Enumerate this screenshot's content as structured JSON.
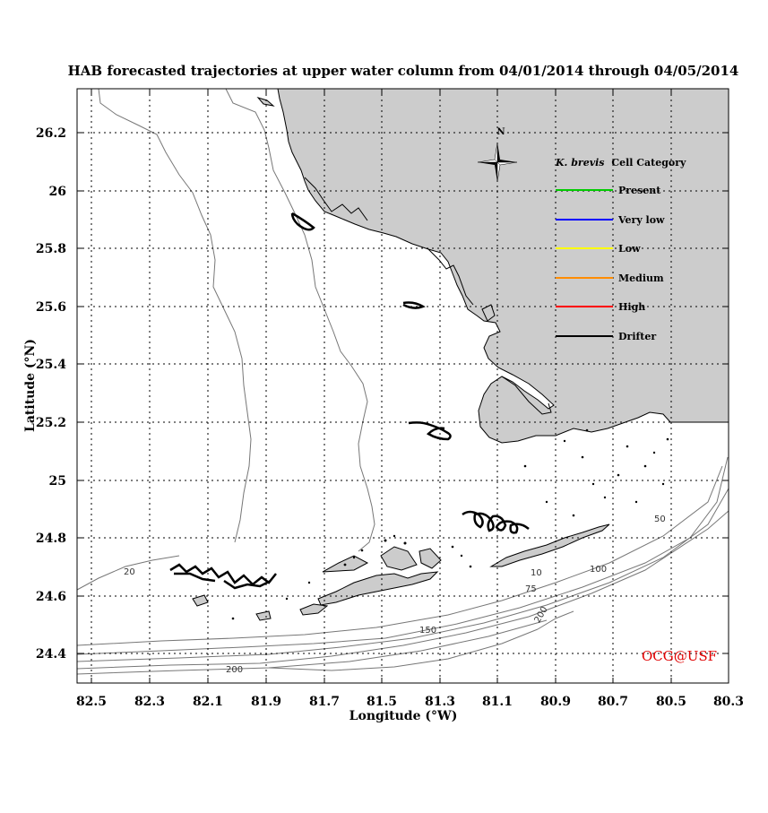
{
  "chart_data": {
    "type": "map",
    "title": "HAB forecasted trajectories at upper water column from 04/01/2014 through 04/05/2014",
    "xlabel": "Longitude (°W)",
    "ylabel": "Latitude (°N)",
    "xlim": [
      82.55,
      80.3
    ],
    "ylim": [
      24.3,
      26.35
    ],
    "x_ticks": [
      "82.5",
      "82.3",
      "82.1",
      "81.9",
      "81.7",
      "81.5",
      "81.3",
      "81.1",
      "80.9",
      "80.7",
      "80.5",
      "80.3"
    ],
    "y_ticks": [
      "26.2",
      "26",
      "25.8",
      "25.6",
      "25.4",
      "25.2",
      "25",
      "24.8",
      "24.6",
      "24.4"
    ],
    "grid": true,
    "compass": "N",
    "legend": {
      "title_italic": "K. brevis",
      "title_rest": "Cell Category",
      "placement": "top-right",
      "items": [
        {
          "label": "Present",
          "color": "#00cc00"
        },
        {
          "label": "Very low",
          "color": "#0000ff"
        },
        {
          "label": "Low",
          "color": "#ffff00"
        },
        {
          "label": "Medium",
          "color": "#ff8c00"
        },
        {
          "label": "High",
          "color": "#ff0000"
        },
        {
          "label": "Drifter",
          "color": "#000000"
        }
      ]
    },
    "contour_labels": [
      "20",
      "10",
      "50",
      "100",
      "75",
      "150",
      "200",
      "200"
    ],
    "credit": "OCG@USF",
    "land_color": "#cccccc",
    "trajectory_color": "#000000"
  }
}
